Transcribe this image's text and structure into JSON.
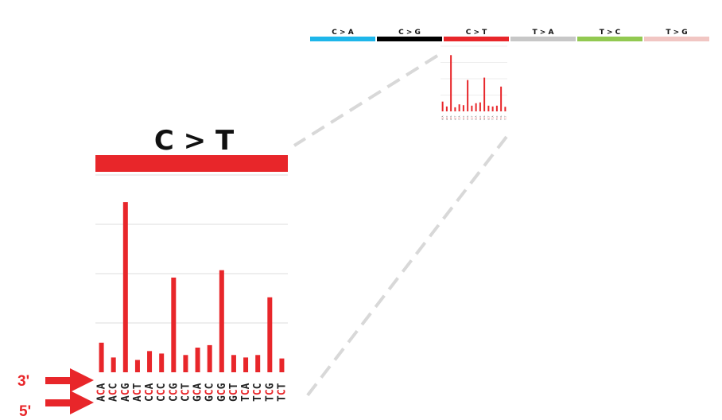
{
  "chart_data": [
    {
      "type": "bar",
      "title": "",
      "categories": [
        "C>A",
        "C>G",
        "C>T",
        "T>A",
        "T>C",
        "T>G"
      ],
      "category_colors": [
        "#1eb6ea",
        "#000000",
        "#e8262a",
        "#c7c7c7",
        "#92c951",
        "#f1c6c3"
      ]
    },
    {
      "type": "bar",
      "title": "C > T",
      "color": "#e8262a",
      "categories": [
        "ACA",
        "ACC",
        "ACG",
        "ACT",
        "CCA",
        "CCC",
        "CCG",
        "CCT",
        "GCA",
        "GCC",
        "GCG",
        "GCT",
        "TCA",
        "TCC",
        "TCG",
        "TCT"
      ],
      "values": [
        0.6,
        0.3,
        3.45,
        0.25,
        0.43,
        0.38,
        1.92,
        0.35,
        0.5,
        0.55,
        2.07,
        0.35,
        0.3,
        0.35,
        1.52,
        0.28
      ],
      "ylim": [
        0,
        4
      ],
      "grid": true,
      "xlabel": "",
      "ylabel": ""
    }
  ],
  "annotations": {
    "three_prime": "3'",
    "five_prime": "5'"
  },
  "colors": {
    "arrow": "#e8262a",
    "grid": "#dddddd",
    "zoom_lines": "#d8d8d8"
  }
}
